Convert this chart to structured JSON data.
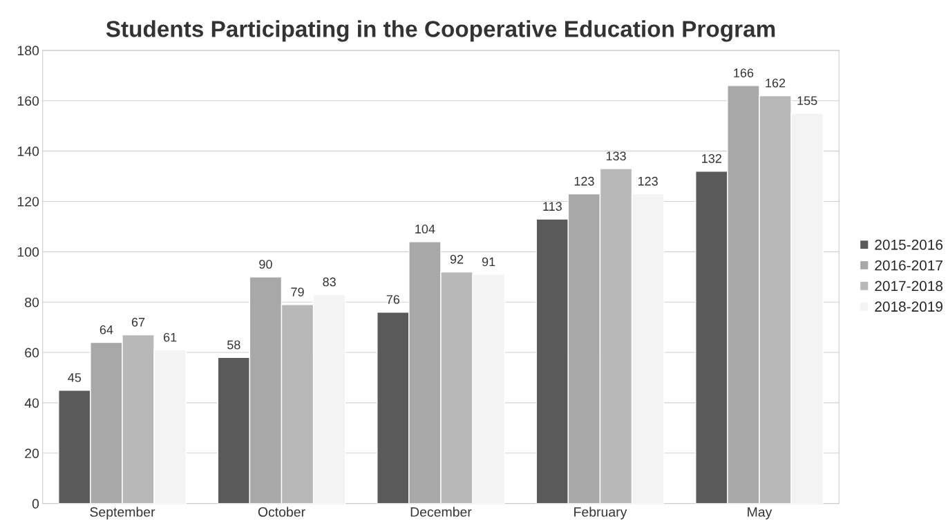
{
  "chart_data": {
    "type": "bar",
    "title": "Students Participating in the Cooperative Education Program",
    "categories": [
      "September",
      "October",
      "December",
      "February",
      "May"
    ],
    "series": [
      {
        "name": "2015-2016",
        "color": "#5a5a5a",
        "values": [
          45,
          58,
          76,
          113,
          132
        ]
      },
      {
        "name": "2016-2017",
        "color": "#a8a8a8",
        "values": [
          64,
          90,
          104,
          123,
          166
        ]
      },
      {
        "name": "2017-2018",
        "color": "#b8b8b8",
        "values": [
          67,
          79,
          92,
          133,
          162
        ]
      },
      {
        "name": "2018-2019",
        "color": "#f3f3f3",
        "values": [
          61,
          83,
          91,
          123,
          155
        ]
      }
    ],
    "ylim": [
      0,
      180
    ],
    "yticks": [
      0,
      20,
      40,
      60,
      80,
      100,
      120,
      140,
      160,
      180
    ],
    "grid": "y",
    "legend": "right",
    "data_labels": true
  }
}
